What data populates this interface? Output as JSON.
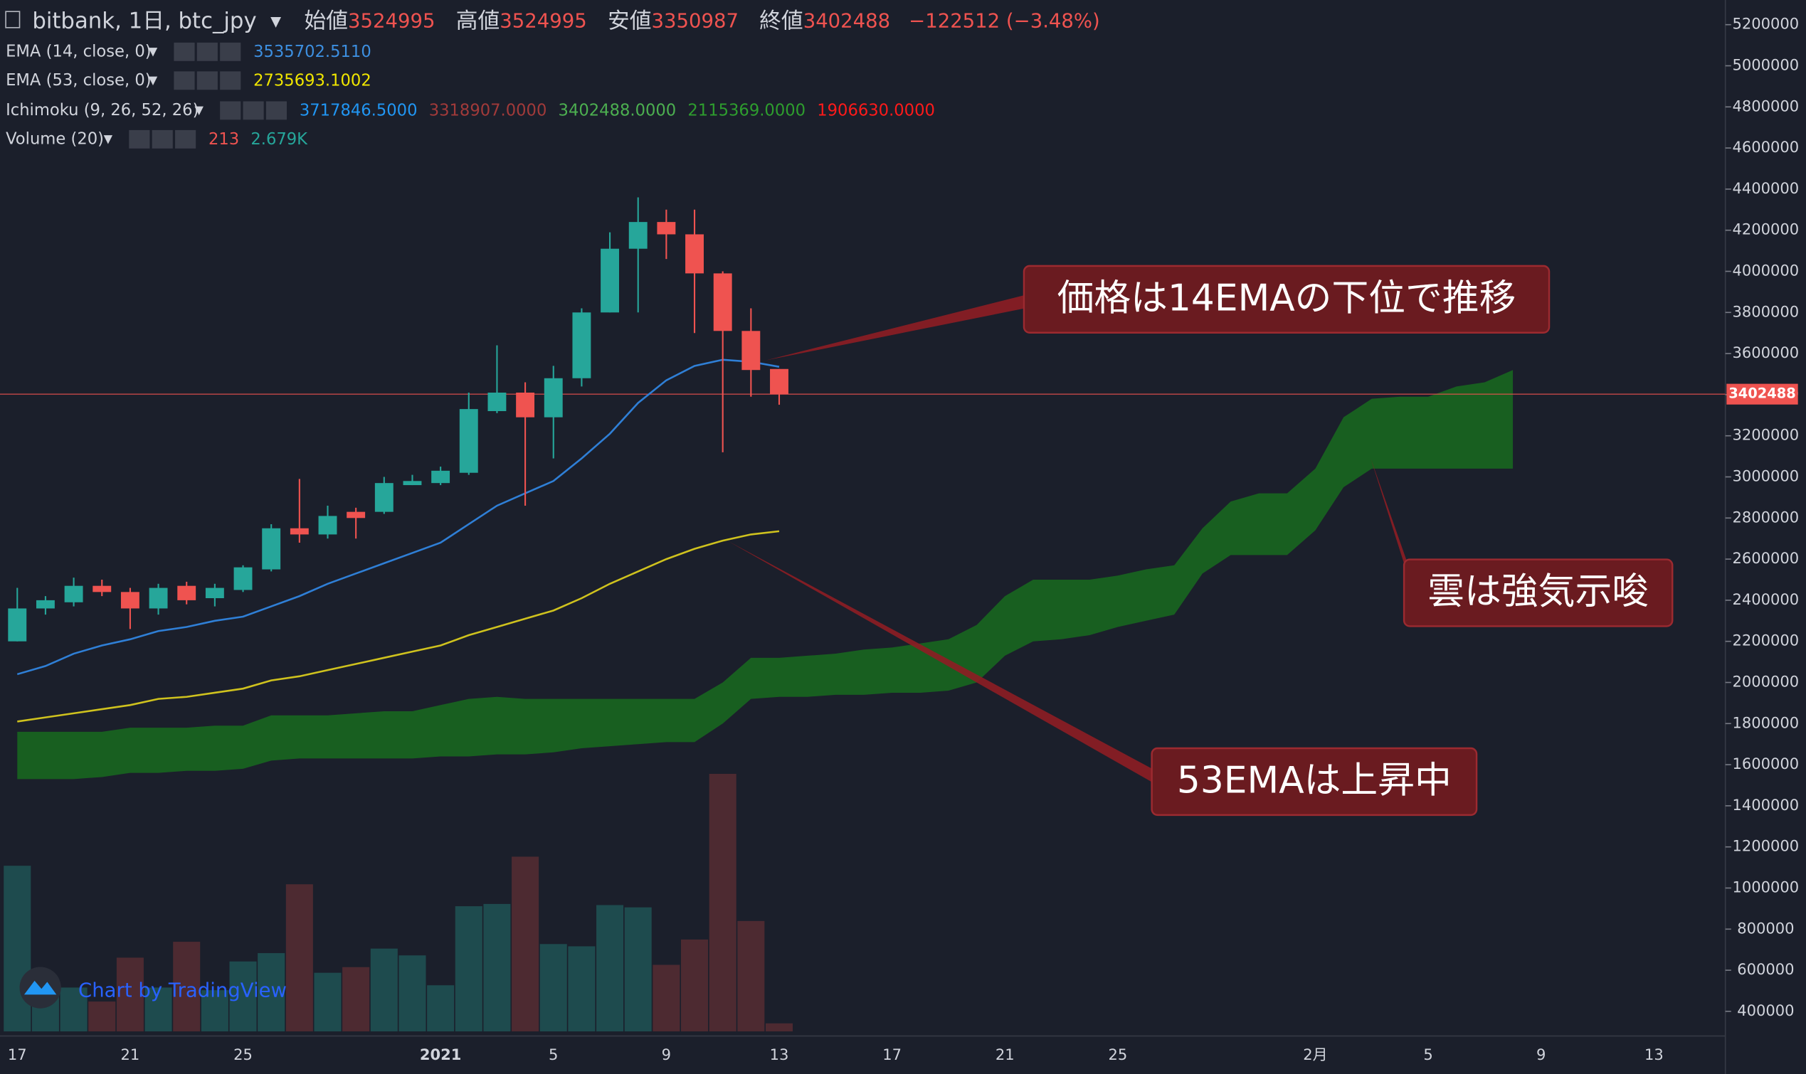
{
  "header": {
    "symbol": "bitbank, 1日, btc_jpy",
    "labels": [
      "始値",
      "高値",
      "安値",
      "終値"
    ],
    "change": "−122512 (−3.48%)"
  },
  "indicators": [
    {
      "name": "EMA (14, close, 0)",
      "values": [
        "3535702.5110"
      ],
      "colors": [
        "#3d8fe0"
      ]
    },
    {
      "name": "EMA (53, close, 0)",
      "values": [
        "2735693.1002"
      ],
      "colors": [
        "#f0e600"
      ]
    },
    {
      "name": "Ichimoku (9, 26, 52, 26)",
      "values": [
        "3717846.5000",
        "3318907.0000",
        "3402488.0000",
        "2115369.0000",
        "1906630.0000"
      ],
      "colors": [
        "#2196f3",
        "#a13a3a",
        "#4caf50",
        "#2e9d2e",
        "#ff1a1a"
      ]
    },
    {
      "name": "Volume (20)",
      "values": [
        "213",
        "2.679K"
      ],
      "colors": [
        "#ef5350",
        "#26a69a"
      ]
    }
  ],
  "watermark": "Chart by TradingView",
  "chart_data": {
    "type": "candlestick",
    "categories": [
      "17",
      null,
      null,
      null,
      "21",
      null,
      null,
      null,
      "25",
      null,
      null,
      null,
      null,
      null,
      null,
      "2021",
      null,
      null,
      null,
      "5",
      null,
      null,
      null,
      "9",
      null,
      null,
      null,
      "13",
      null,
      null,
      null,
      "17",
      null,
      null,
      null,
      "21",
      null,
      null,
      null,
      "25",
      null,
      null,
      null,
      null,
      null,
      null,
      "2月",
      null,
      null,
      null,
      "5",
      null,
      null,
      null,
      "9",
      null,
      null,
      null,
      "13",
      null,
      null
    ],
    "open": [
      2200000,
      2360000,
      2390000,
      2470000,
      2440000,
      2360000,
      2470000,
      2410000,
      2450000,
      2550000,
      2750000,
      2720000,
      2830000,
      2830000,
      2960000,
      2970000,
      3020000,
      3320000,
      3410000,
      3290000,
      3480000,
      3800000,
      4110000,
      4240000,
      4180000,
      3990000,
      3710000,
      3524995,
      null,
      null,
      null,
      null,
      null,
      null,
      null,
      null,
      null,
      null,
      null,
      null,
      null,
      null,
      null,
      null,
      null,
      null,
      null,
      null,
      null,
      null,
      null,
      null,
      null,
      null,
      null,
      null,
      null,
      null,
      null,
      null,
      null
    ],
    "high": [
      2460000,
      2420000,
      2510000,
      2500000,
      2460000,
      2480000,
      2490000,
      2480000,
      2570000,
      2770000,
      2990000,
      2860000,
      2850000,
      3000000,
      3010000,
      3050000,
      3410000,
      3640000,
      3460000,
      3540000,
      3820000,
      4190000,
      4360000,
      4300000,
      4300000,
      4000000,
      3820000,
      3524995,
      null,
      null,
      null,
      null,
      null,
      null,
      null,
      null,
      null,
      null,
      null,
      null,
      null,
      null,
      null,
      null,
      null,
      null,
      null,
      null,
      null,
      null,
      null,
      null,
      null,
      null,
      null,
      null,
      null,
      null,
      null,
      null,
      null
    ],
    "low": [
      2200000,
      2330000,
      2370000,
      2420000,
      2260000,
      2330000,
      2380000,
      2370000,
      2440000,
      2540000,
      2680000,
      2700000,
      2700000,
      2820000,
      2960000,
      2960000,
      3010000,
      3310000,
      2860000,
      3090000,
      3440000,
      3800000,
      3800000,
      4060000,
      3700000,
      3120000,
      3390000,
      3350987,
      null,
      null,
      null,
      null,
      null,
      null,
      null,
      null,
      null,
      null,
      null,
      null,
      null,
      null,
      null,
      null,
      null,
      null,
      null,
      null,
      null,
      null,
      null,
      null,
      null,
      null,
      null,
      null,
      null,
      null,
      null,
      null,
      null
    ],
    "close": [
      2360000,
      2400000,
      2470000,
      2440000,
      2360000,
      2460000,
      2400000,
      2460000,
      2560000,
      2750000,
      2720000,
      2810000,
      2800000,
      2970000,
      2980000,
      3030000,
      3330000,
      3410000,
      3290000,
      3480000,
      3800000,
      4110000,
      4240000,
      4180000,
      3990000,
      3710000,
      3520000,
      3402488,
      null,
      null,
      null,
      null,
      null,
      null,
      null,
      null,
      null,
      null,
      null,
      null,
      null,
      null,
      null,
      null,
      null,
      null,
      null,
      null,
      null,
      null,
      null,
      null,
      null,
      null,
      null,
      null,
      null,
      null,
      null,
      null,
      null
    ],
    "up_color": "#26a69a",
    "down_color": "#ef5350",
    "lines": [
      {
        "color": "#2f7fd6",
        "values": [
          2040000,
          2080000,
          2140000,
          2180000,
          2210000,
          2250000,
          2270000,
          2300000,
          2320000,
          2370000,
          2420000,
          2480000,
          2530000,
          2580000,
          2630000,
          2680000,
          2770000,
          2860000,
          2920000,
          2980000,
          3090000,
          3210000,
          3360000,
          3470000,
          3540000,
          3570000,
          3560000,
          3535702,
          null,
          null,
          null,
          null,
          null,
          null,
          null,
          null,
          null,
          null,
          null,
          null,
          null,
          null,
          null,
          null,
          null,
          null,
          null,
          null,
          null,
          null,
          null,
          null,
          null,
          null,
          null,
          null,
          null,
          null,
          null,
          null,
          null
        ]
      },
      {
        "color": "#cfc21e",
        "values": [
          1810000,
          1830000,
          1850000,
          1870000,
          1890000,
          1920000,
          1930000,
          1950000,
          1970000,
          2010000,
          2030000,
          2060000,
          2090000,
          2120000,
          2150000,
          2180000,
          2230000,
          2270000,
          2310000,
          2350000,
          2410000,
          2480000,
          2540000,
          2600000,
          2650000,
          2690000,
          2720000,
          2735693,
          null,
          null,
          null,
          null,
          null,
          null,
          null,
          null,
          null,
          null,
          null,
          null,
          null,
          null,
          null,
          null,
          null,
          null,
          null,
          null,
          null,
          null,
          null,
          null,
          null,
          null,
          null,
          null,
          null,
          null,
          null,
          null,
          null
        ]
      }
    ],
    "cloud": {
      "color": "#176b1f",
      "upper": [
        1760000,
        1760000,
        1760000,
        1760000,
        1780000,
        1780000,
        1780000,
        1790000,
        1790000,
        1840000,
        1840000,
        1840000,
        1850000,
        1860000,
        1860000,
        1890000,
        1920000,
        1930000,
        1920000,
        1920000,
        1920000,
        1920000,
        1920000,
        1920000,
        1920000,
        2000000,
        2120000,
        2120000,
        2130000,
        2140000,
        2160000,
        2170000,
        2190000,
        2210000,
        2280000,
        2420000,
        2500000,
        2500000,
        2500000,
        2520000,
        2550000,
        2570000,
        2750000,
        2880000,
        2920000,
        2920000,
        3040000,
        3290000,
        3380000,
        3390000,
        3390000,
        3440000,
        3460000,
        3520000,
        null,
        null,
        null,
        null,
        null,
        null,
        null
      ],
      "lower": [
        1530000,
        1530000,
        1530000,
        1540000,
        1560000,
        1560000,
        1570000,
        1570000,
        1580000,
        1620000,
        1630000,
        1630000,
        1630000,
        1630000,
        1630000,
        1640000,
        1640000,
        1650000,
        1650000,
        1660000,
        1680000,
        1690000,
        1700000,
        1710000,
        1710000,
        1800000,
        1920000,
        1930000,
        1930000,
        1940000,
        1940000,
        1950000,
        1950000,
        1960000,
        2000000,
        2130000,
        2200000,
        2210000,
        2230000,
        2270000,
        2300000,
        2330000,
        2530000,
        2620000,
        2620000,
        2620000,
        2740000,
        2950000,
        3040000,
        3040000,
        3040000,
        3040000,
        3040000,
        3040000,
        null,
        null,
        null,
        null,
        null,
        null,
        null
      ]
    },
    "volume": {
      "up_color": "#1e4b4e",
      "down_color": "#4d2a31",
      "vlim": [
        0,
        7000
      ],
      "values": [
        4380,
        1340,
        1160,
        790,
        1950,
        1160,
        2370,
        1090,
        1850,
        2070,
        3890,
        1550,
        1700,
        2190,
        2010,
        1220,
        3310,
        3370,
        4620,
        2310,
        2250,
        3340,
        3280,
        1760,
        2430,
        6810,
        2920,
        213,
        null,
        null,
        null,
        null,
        null,
        null,
        null,
        null,
        null,
        null,
        null,
        null,
        null,
        null,
        null,
        null,
        null,
        null,
        null,
        null,
        null,
        null,
        null,
        null,
        null,
        null,
        null,
        null,
        null,
        null,
        null,
        null,
        null
      ]
    },
    "ylim": [
      280000,
      5320000
    ],
    "yticks": [
      400000,
      600000,
      800000,
      1000000,
      1200000,
      1400000,
      1600000,
      1800000,
      2000000,
      2200000,
      2400000,
      2600000,
      2800000,
      3000000,
      3200000,
      3400000,
      3600000,
      3800000,
      4000000,
      4200000,
      4400000,
      4600000,
      4800000,
      5000000,
      5200000
    ],
    "last_price_color": "#ef5350",
    "annotations": [
      {
        "text": "価格は14EMAの下位で推移"
      },
      {
        "text": "雲は強気示唆"
      },
      {
        "text": "53EMAは上昇中"
      }
    ]
  }
}
